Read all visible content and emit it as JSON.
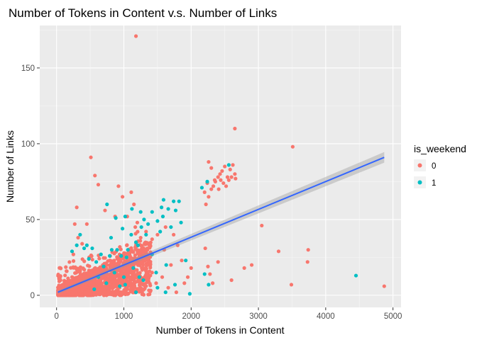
{
  "chart_data": {
    "type": "scatter",
    "title": "Number of Tokens in Content v.s. Number of Links",
    "xlabel": "Number of Tokens in Content",
    "ylabel": "Number of Links",
    "xlim": [
      -250,
      5120
    ],
    "ylim": [
      -8,
      178
    ],
    "x_ticks": [
      0,
      1000,
      2000,
      3000,
      4000,
      5000
    ],
    "y_ticks": [
      0,
      50,
      100,
      150
    ],
    "grid": true,
    "background": "#ebebeb",
    "legend": {
      "title": "is_weekend",
      "position": "right",
      "entries": [
        {
          "label": "0",
          "color": "#f8766d"
        },
        {
          "label": "1",
          "color": "#00bfc4"
        }
      ]
    },
    "series": [
      {
        "name": "0",
        "color": "#f8766d",
        "points": [
          [
            1180,
            171
          ],
          [
            2650,
            110
          ],
          [
            3510,
            98
          ],
          [
            510,
            91
          ],
          [
            4870,
            6
          ],
          [
            3050,
            46
          ],
          [
            3300,
            29
          ],
          [
            3740,
            30
          ],
          [
            3730,
            22
          ],
          [
            3490,
            7
          ],
          [
            2900,
            20
          ],
          [
            2790,
            18
          ],
          [
            2400,
            22
          ],
          [
            2280,
            14
          ],
          [
            2600,
            10
          ],
          [
            2320,
            8
          ],
          [
            2000,
            18
          ],
          [
            1860,
            23
          ],
          [
            2210,
            31
          ],
          [
            2250,
            19
          ],
          [
            1950,
            12
          ],
          [
            1800,
            33
          ],
          [
            1740,
            40
          ],
          [
            1620,
            45
          ],
          [
            1500,
            40
          ],
          [
            1420,
            37
          ],
          [
            1330,
            42
          ],
          [
            1200,
            48
          ],
          [
            1170,
            45
          ],
          [
            1110,
            68
          ],
          [
            980,
            65
          ],
          [
            920,
            72
          ],
          [
            870,
            52
          ],
          [
            720,
            56
          ],
          [
            620,
            73
          ],
          [
            570,
            79
          ],
          [
            450,
            47
          ],
          [
            300,
            58
          ],
          [
            270,
            47
          ],
          [
            320,
            38
          ],
          [
            380,
            34
          ],
          [
            250,
            27
          ],
          [
            1050,
            52
          ],
          [
            1150,
            60
          ],
          [
            1250,
            38
          ],
          [
            1380,
            33
          ],
          [
            1420,
            15
          ],
          [
            1290,
            26
          ],
          [
            1600,
            30
          ],
          [
            1700,
            20
          ],
          [
            1570,
            12
          ],
          [
            1480,
            8
          ],
          [
            1660,
            5
          ],
          [
            1780,
            2
          ],
          [
            1900,
            8
          ],
          [
            1390,
            3
          ],
          [
            2220,
            60
          ],
          [
            2260,
            65
          ],
          [
            2300,
            70
          ],
          [
            2330,
            72
          ],
          [
            2360,
            75
          ],
          [
            2400,
            78
          ],
          [
            2430,
            80
          ],
          [
            2460,
            82
          ],
          [
            2500,
            85
          ],
          [
            2540,
            78
          ],
          [
            2580,
            83
          ],
          [
            2620,
            86
          ],
          [
            2650,
            80
          ],
          [
            2260,
            88
          ],
          [
            2300,
            84
          ],
          [
            2350,
            76
          ],
          [
            2200,
            68
          ],
          [
            2240,
            74
          ],
          [
            2410,
            70
          ],
          [
            2440,
            76
          ],
          [
            2480,
            74
          ],
          [
            2520,
            72
          ],
          [
            2560,
            76
          ],
          [
            2600,
            78
          ],
          [
            2660,
            77
          ]
        ],
        "cluster": {
          "x_range": [
            20,
            1400
          ],
          "description": "dense"
        }
      },
      {
        "name": "1",
        "color": "#00bfc4",
        "points": [
          [
            2560,
            86
          ],
          [
            2240,
            75
          ],
          [
            2160,
            71
          ],
          [
            1740,
            62
          ],
          [
            1590,
            63
          ],
          [
            1560,
            58
          ],
          [
            1660,
            57
          ],
          [
            1580,
            52
          ],
          [
            1500,
            49
          ],
          [
            1420,
            55
          ],
          [
            1360,
            47
          ],
          [
            1300,
            50
          ],
          [
            1250,
            55
          ],
          [
            1120,
            57
          ],
          [
            1020,
            52
          ],
          [
            880,
            51
          ],
          [
            750,
            60
          ],
          [
            1260,
            45
          ],
          [
            1540,
            42
          ],
          [
            1700,
            45
          ],
          [
            1850,
            48
          ],
          [
            1630,
            20
          ],
          [
            1920,
            23
          ],
          [
            2200,
            14
          ],
          [
            2260,
            7
          ],
          [
            1760,
            7
          ],
          [
            1620,
            2
          ],
          [
            1500,
            5
          ],
          [
            1980,
            1
          ],
          [
            1230,
            12
          ],
          [
            1140,
            18
          ],
          [
            1040,
            25
          ],
          [
            960,
            26
          ],
          [
            900,
            30
          ],
          [
            820,
            30
          ],
          [
            790,
            26
          ],
          [
            700,
            19
          ],
          [
            660,
            27
          ],
          [
            590,
            22
          ],
          [
            530,
            31
          ],
          [
            480,
            24
          ],
          [
            450,
            33
          ],
          [
            410,
            31
          ],
          [
            350,
            40
          ],
          [
            300,
            33
          ],
          [
            230,
            29
          ],
          [
            1820,
            62
          ],
          [
            1770,
            56
          ],
          [
            4450,
            13
          ],
          [
            1480,
            15
          ],
          [
            1420,
            27
          ],
          [
            1330,
            40
          ],
          [
            1180,
            35
          ],
          [
            1060,
            30
          ],
          [
            980,
            44
          ],
          [
            1210,
            33
          ],
          [
            1290,
            10
          ],
          [
            1000,
            12
          ],
          [
            860,
            15
          ],
          [
            740,
            8
          ],
          [
            620,
            12
          ],
          [
            560,
            4
          ],
          [
            810,
            38
          ],
          [
            1110,
            40
          ],
          [
            1020,
            7
          ],
          [
            1180,
            2
          ],
          [
            940,
            6
          ]
        ]
      }
    ],
    "trend_line": {
      "type": "linear",
      "color": "#3366ff",
      "ribbon_color": "#999999",
      "x": [
        20,
        4870
      ],
      "y": [
        2,
        91
      ],
      "ci_halfwidth": [
        1.2,
        3.5
      ]
    }
  }
}
